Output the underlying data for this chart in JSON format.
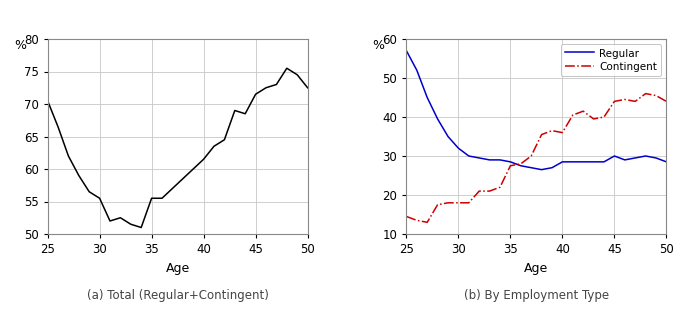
{
  "total_ages": [
    25,
    26,
    27,
    28,
    29,
    30,
    31,
    32,
    33,
    34,
    35,
    36,
    37,
    38,
    39,
    40,
    41,
    42,
    43,
    44,
    45,
    46,
    47,
    48,
    49,
    50
  ],
  "total_values": [
    70.5,
    66.5,
    62.0,
    59.0,
    56.5,
    55.5,
    52.0,
    52.5,
    51.5,
    51.0,
    55.5,
    55.5,
    57.0,
    58.5,
    60.0,
    61.5,
    63.5,
    64.5,
    69.0,
    68.5,
    71.5,
    72.5,
    73.0,
    75.5,
    74.5,
    72.5
  ],
  "regular_ages": [
    25,
    26,
    27,
    28,
    29,
    30,
    31,
    32,
    33,
    34,
    35,
    36,
    37,
    38,
    39,
    40,
    41,
    42,
    43,
    44,
    45,
    46,
    47,
    48,
    49,
    50
  ],
  "regular_values": [
    57.0,
    52.0,
    45.0,
    39.5,
    35.0,
    32.0,
    30.0,
    29.5,
    29.0,
    29.0,
    28.5,
    27.5,
    27.0,
    26.5,
    27.0,
    28.5,
    28.5,
    28.5,
    28.5,
    28.5,
    30.0,
    29.0,
    29.5,
    30.0,
    29.5,
    28.5
  ],
  "contingent_ages": [
    25,
    26,
    27,
    28,
    29,
    30,
    31,
    32,
    33,
    34,
    35,
    36,
    37,
    38,
    39,
    40,
    41,
    42,
    43,
    44,
    45,
    46,
    47,
    48,
    49,
    50
  ],
  "contingent_values": [
    14.5,
    13.5,
    13.0,
    17.5,
    18.0,
    18.0,
    18.0,
    21.0,
    21.0,
    22.0,
    27.5,
    28.0,
    30.0,
    35.5,
    36.5,
    36.0,
    40.5,
    41.5,
    39.5,
    40.0,
    44.0,
    44.5,
    44.0,
    46.0,
    45.5,
    44.0
  ],
  "total_ylim": [
    50,
    80
  ],
  "total_yticks": [
    50,
    55,
    60,
    65,
    70,
    75,
    80
  ],
  "right_ylim": [
    10,
    60
  ],
  "right_yticks": [
    10,
    20,
    30,
    40,
    50,
    60
  ],
  "xlim": [
    25,
    50
  ],
  "xticks": [
    25,
    30,
    35,
    40,
    45,
    50
  ],
  "xlabel": "Age",
  "ylabel": "%",
  "label_a": "(a) Total (Regular+Contingent)",
  "label_b": "(b) By Employment Type",
  "legend_regular": "Regular",
  "legend_contingent": "Contingent",
  "line_color_total": "#000000",
  "line_color_regular": "#0000cc",
  "line_color_contingent": "#cc0000",
  "bg_color": "#ffffff",
  "grid_color": "#c8c8c8"
}
